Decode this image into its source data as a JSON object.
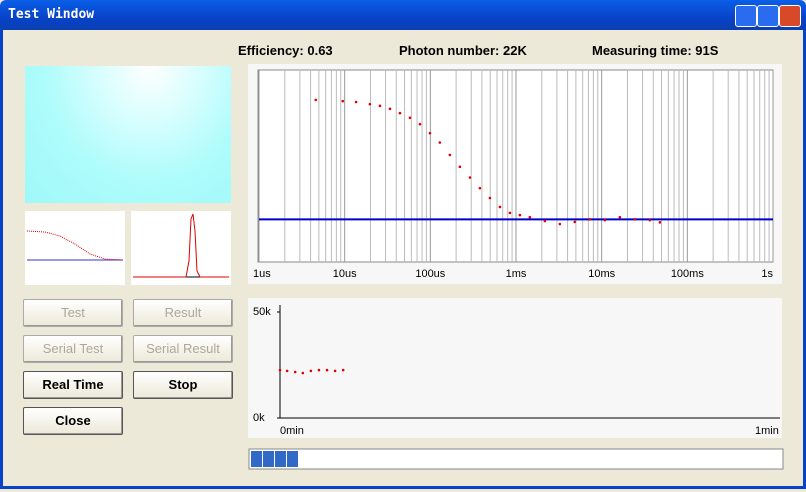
{
  "window": {
    "title": "Test Window"
  },
  "status": {
    "efficiency": "Efficiency: 0.63",
    "photon_number": "Photon number: 22K",
    "measuring_time": "Measuring time: 91S"
  },
  "buttons": [
    {
      "label": "Test",
      "enabled": false
    },
    {
      "label": "Result",
      "enabled": false
    },
    {
      "label": "Serial Test",
      "enabled": false
    },
    {
      "label": "Serial Result",
      "enabled": false
    },
    {
      "label": "Real Time",
      "enabled": true
    },
    {
      "label": "Stop",
      "enabled": true
    },
    {
      "label": "Close",
      "enabled": true
    }
  ],
  "progress": 11,
  "chart_data": [
    {
      "type": "scatter",
      "xscale": "log",
      "grid": true,
      "color": "#e00000",
      "xlim": [
        1e-06,
        1
      ],
      "ylim": [
        0.9,
        1.35
      ],
      "xticks": [
        {
          "value": 1e-06,
          "label": "1us"
        },
        {
          "value": 1e-05,
          "label": "10us"
        },
        {
          "value": 0.0001,
          "label": "100us"
        },
        {
          "value": 0.001,
          "label": "1ms"
        },
        {
          "value": 0.01,
          "label": "10ms"
        },
        {
          "value": 0.1,
          "label": "100ms"
        },
        {
          "value": 1,
          "label": "1s"
        }
      ],
      "reference_line": {
        "value": 1,
        "color": "#0000cc"
      },
      "x": [
        4.6e-06,
        9.5e-06,
        1.36e-05,
        1.97e-05,
        2.58e-05,
        3.38e-05,
        4.42e-05,
        5.78e-05,
        7.57e-05,
        9.9e-05,
        0.000129,
        0.000169,
        0.000221,
        0.00029,
        0.000379,
        0.000496,
        0.000649,
        0.000849,
        0.00111,
        0.00145,
        0.00217,
        0.00325,
        0.00486,
        0.00728,
        0.0109,
        0.0163,
        0.0244,
        0.0365,
        0.0478
      ],
      "values": [
        1.28,
        1.277,
        1.275,
        1.27,
        1.266,
        1.259,
        1.249,
        1.238,
        1.223,
        1.202,
        1.18,
        1.151,
        1.123,
        1.098,
        1.073,
        1.05,
        1.029,
        1.015,
        1.01,
        1.005,
        0.996,
        0.989,
        0.994,
        1.0,
        0.998,
        1.005,
        1.0,
        0.998,
        0.993
      ]
    },
    {
      "type": "scatter",
      "color": "#e00000",
      "xlim": [
        0,
        1
      ],
      "ylim": [
        0,
        50000
      ],
      "xticks": [
        {
          "value": 0,
          "label": "0min"
        },
        {
          "value": 1,
          "label": "1min"
        }
      ],
      "yticks": [
        {
          "value": 0,
          "label": "0k"
        },
        {
          "value": 50000,
          "label": "50k"
        }
      ],
      "x": [
        0,
        0.015,
        0.032,
        0.048,
        0.065,
        0.082,
        0.099,
        0.116,
        0.133
      ],
      "values": [
        22600,
        22200,
        21700,
        21200,
        22200,
        22600,
        22600,
        22200,
        22600
      ]
    }
  ]
}
